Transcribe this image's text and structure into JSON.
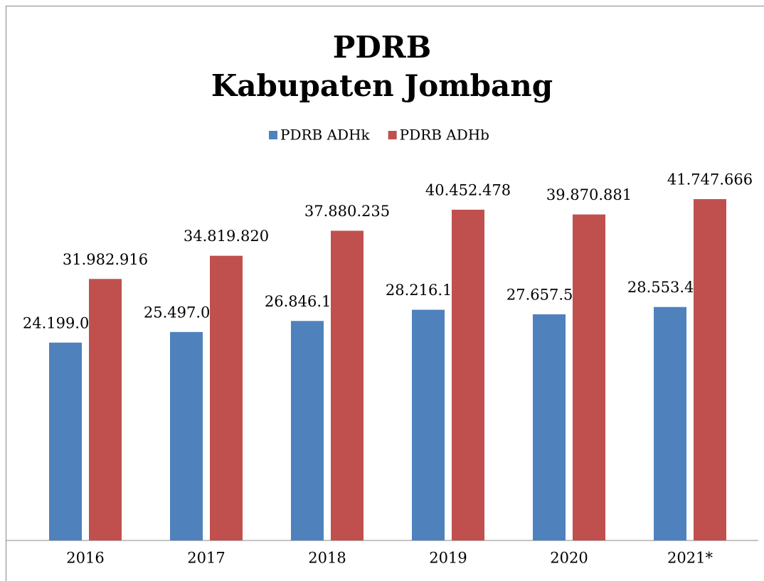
{
  "chart_data": {
    "type": "bar",
    "title": [
      "PDRB",
      "Kabupaten Jombang"
    ],
    "categories": [
      "2016",
      "2017",
      "2018",
      "2019",
      "2020",
      "2021*"
    ],
    "series": [
      {
        "name": "PDRB ADHk",
        "color": "#4f81bd",
        "values": [
          24199072,
          25497001,
          26846145,
          28216180,
          27657585,
          28553448
        ],
        "value_labels": [
          "24.199.072",
          "25.497.001",
          "26.846.145",
          "28.216.180",
          "27.657.585",
          "28.553.448"
        ]
      },
      {
        "name": "PDRB ADHb",
        "color": "#c0504d",
        "values": [
          31982916,
          34819820,
          37880235,
          40452478,
          39870881,
          41747666
        ],
        "value_labels": [
          "31.982.916",
          "34.819.820",
          "37.880.235",
          "40.452.478",
          "39.870.881",
          "41.747.666"
        ]
      }
    ],
    "legend": "top"
  }
}
